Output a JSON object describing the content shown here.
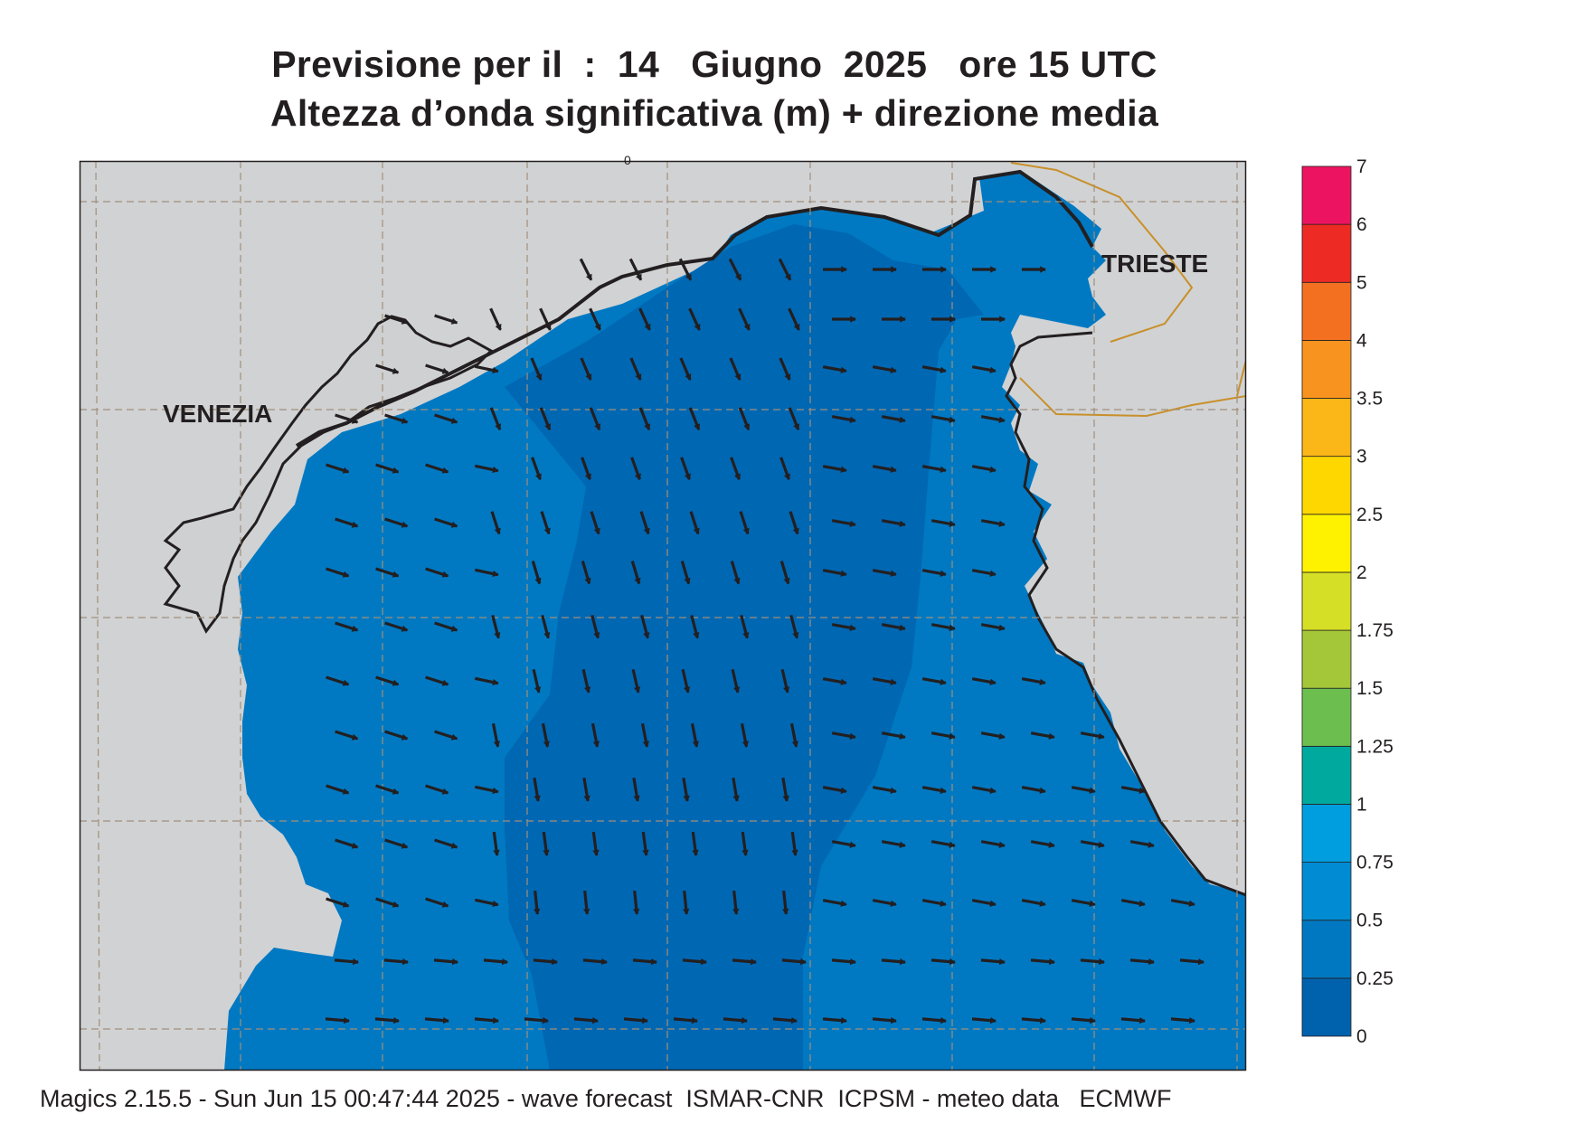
{
  "header": {
    "title_line1": "Previsione per il  :  14   Giugno  2025   ore 15 UTC",
    "title_line2": "Altezza d’onda significativa (m) + direzione media"
  },
  "map": {
    "labels": {
      "city1": "VENEZIA",
      "city2": "TRIESTE",
      "top_mark": "0"
    },
    "colors": {
      "land": "#d1d2d4",
      "sea_0_025": "#0067b3",
      "sea_025_05": "#0079c2",
      "sea_05_075": "#0087cf",
      "border": "#c8902a",
      "grid": "#a0907a"
    },
    "arrow_direction": "predominantly from the west/northwest toward the east/southeast"
  },
  "colorbar": {
    "ticks": [
      "0",
      "0.25",
      "0.5",
      "0.75",
      "1",
      "1.25",
      "1.5",
      "1.75",
      "2",
      "2.5",
      "3",
      "3.5",
      "4",
      "5",
      "6",
      "7"
    ],
    "colors": [
      "#0061ad",
      "#0078c1",
      "#008bd2",
      "#009ddf",
      "#00a99d",
      "#6cbe4f",
      "#a4c639",
      "#d5df26",
      "#fff200",
      "#ffd700",
      "#fbb617",
      "#f7931e",
      "#f37021",
      "#ee2a24",
      "#ec1460"
    ]
  },
  "footer": {
    "text": "Magics 2.15.5 - Sun Jun 15 00:47:44 2025 - wave forecast  ISMAR-CNR  ICPSM - meteo data   ECMWF"
  }
}
